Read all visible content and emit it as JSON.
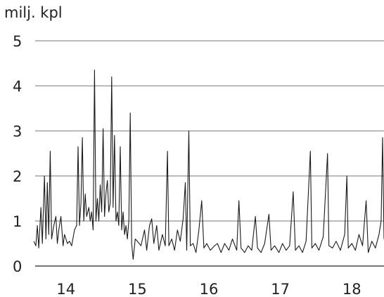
{
  "chart_data": {
    "type": "line",
    "ylabel": "milj. kpl",
    "ylim": [
      0,
      5
    ],
    "yticks": [
      0,
      1,
      2,
      3,
      4,
      5
    ],
    "xlim": [
      13.55,
      18.45
    ],
    "xticks": [
      "14",
      "15",
      "16",
      "17",
      "18"
    ],
    "grid": "horizontal",
    "line_color": "#1a1a1a",
    "grid_color": "#777777",
    "series": [
      {
        "points": [
          [
            13.55,
            0.55
          ],
          [
            13.58,
            0.45
          ],
          [
            13.6,
            0.9
          ],
          [
            13.62,
            0.4
          ],
          [
            13.65,
            1.3
          ],
          [
            13.67,
            0.5
          ],
          [
            13.7,
            2.0
          ],
          [
            13.72,
            0.6
          ],
          [
            13.74,
            1.85
          ],
          [
            13.76,
            0.7
          ],
          [
            13.78,
            2.55
          ],
          [
            13.8,
            0.6
          ],
          [
            13.83,
            0.9
          ],
          [
            13.86,
            1.1
          ],
          [
            13.88,
            0.5
          ],
          [
            13.9,
            0.8
          ],
          [
            13.93,
            1.1
          ],
          [
            13.96,
            0.45
          ],
          [
            13.98,
            0.7
          ],
          [
            14.02,
            0.5
          ],
          [
            14.05,
            0.55
          ],
          [
            14.08,
            0.45
          ],
          [
            14.12,
            0.8
          ],
          [
            14.15,
            0.9
          ],
          [
            14.17,
            2.65
          ],
          [
            14.19,
            0.9
          ],
          [
            14.21,
            1.4
          ],
          [
            14.23,
            2.85
          ],
          [
            14.25,
            1.0
          ],
          [
            14.27,
            1.6
          ],
          [
            14.29,
            1.1
          ],
          [
            14.32,
            1.3
          ],
          [
            14.34,
            1.0
          ],
          [
            14.36,
            1.2
          ],
          [
            14.38,
            0.8
          ],
          [
            14.4,
            4.35
          ],
          [
            14.42,
            1.0
          ],
          [
            14.44,
            1.5
          ],
          [
            14.46,
            1.0
          ],
          [
            14.48,
            1.8
          ],
          [
            14.5,
            1.2
          ],
          [
            14.52,
            3.05
          ],
          [
            14.54,
            1.1
          ],
          [
            14.56,
            1.6
          ],
          [
            14.58,
            1.9
          ],
          [
            14.6,
            1.2
          ],
          [
            14.62,
            1.4
          ],
          [
            14.64,
            4.2
          ],
          [
            14.66,
            1.3
          ],
          [
            14.68,
            2.9
          ],
          [
            14.7,
            1.0
          ],
          [
            14.72,
            1.2
          ],
          [
            14.74,
            0.9
          ],
          [
            14.76,
            2.65
          ],
          [
            14.78,
            0.8
          ],
          [
            14.8,
            1.2
          ],
          [
            14.82,
            0.7
          ],
          [
            14.84,
            0.9
          ],
          [
            14.86,
            0.6
          ],
          [
            14.88,
            1.0
          ],
          [
            14.9,
            3.4
          ],
          [
            14.92,
            0.5
          ],
          [
            14.94,
            0.15
          ],
          [
            14.97,
            0.6
          ],
          [
            15.0,
            0.55
          ],
          [
            15.05,
            0.45
          ],
          [
            15.1,
            0.8
          ],
          [
            15.13,
            0.35
          ],
          [
            15.17,
            0.9
          ],
          [
            15.2,
            1.05
          ],
          [
            15.23,
            0.5
          ],
          [
            15.27,
            0.9
          ],
          [
            15.3,
            0.35
          ],
          [
            15.35,
            0.7
          ],
          [
            15.39,
            0.45
          ],
          [
            15.42,
            2.55
          ],
          [
            15.44,
            0.45
          ],
          [
            15.48,
            0.6
          ],
          [
            15.52,
            0.35
          ],
          [
            15.56,
            0.8
          ],
          [
            15.6,
            0.55
          ],
          [
            15.64,
            1.05
          ],
          [
            15.67,
            1.85
          ],
          [
            15.69,
            0.35
          ],
          [
            15.72,
            3.0
          ],
          [
            15.74,
            0.45
          ],
          [
            15.78,
            0.5
          ],
          [
            15.82,
            0.3
          ],
          [
            15.86,
            0.8
          ],
          [
            15.9,
            1.45
          ],
          [
            15.93,
            0.4
          ],
          [
            15.97,
            0.5
          ],
          [
            16.02,
            0.35
          ],
          [
            16.08,
            0.45
          ],
          [
            16.12,
            0.5
          ],
          [
            16.17,
            0.3
          ],
          [
            16.22,
            0.5
          ],
          [
            16.28,
            0.35
          ],
          [
            16.33,
            0.6
          ],
          [
            16.39,
            0.35
          ],
          [
            16.42,
            1.45
          ],
          [
            16.45,
            0.4
          ],
          [
            16.5,
            0.3
          ],
          [
            16.55,
            0.45
          ],
          [
            16.6,
            0.35
          ],
          [
            16.65,
            1.1
          ],
          [
            16.68,
            0.4
          ],
          [
            16.73,
            0.3
          ],
          [
            16.78,
            0.5
          ],
          [
            16.84,
            1.15
          ],
          [
            16.87,
            0.35
          ],
          [
            16.92,
            0.45
          ],
          [
            16.98,
            0.3
          ],
          [
            17.03,
            0.5
          ],
          [
            17.08,
            0.35
          ],
          [
            17.13,
            0.45
          ],
          [
            17.18,
            1.65
          ],
          [
            17.21,
            0.35
          ],
          [
            17.26,
            0.45
          ],
          [
            17.31,
            0.3
          ],
          [
            17.36,
            0.55
          ],
          [
            17.42,
            2.55
          ],
          [
            17.44,
            0.4
          ],
          [
            17.49,
            0.5
          ],
          [
            17.54,
            0.35
          ],
          [
            17.6,
            0.65
          ],
          [
            17.66,
            2.5
          ],
          [
            17.68,
            0.45
          ],
          [
            17.73,
            0.4
          ],
          [
            17.78,
            0.55
          ],
          [
            17.84,
            0.35
          ],
          [
            17.9,
            0.7
          ],
          [
            17.93,
            2.0
          ],
          [
            17.95,
            0.4
          ],
          [
            18.0,
            0.5
          ],
          [
            18.05,
            0.35
          ],
          [
            18.1,
            0.7
          ],
          [
            18.15,
            0.45
          ],
          [
            18.2,
            1.45
          ],
          [
            18.23,
            0.3
          ],
          [
            18.28,
            0.55
          ],
          [
            18.33,
            0.4
          ],
          [
            18.38,
            0.7
          ],
          [
            18.41,
            1.0
          ],
          [
            18.43,
            2.85
          ],
          [
            18.45,
            0.6
          ]
        ]
      }
    ]
  }
}
